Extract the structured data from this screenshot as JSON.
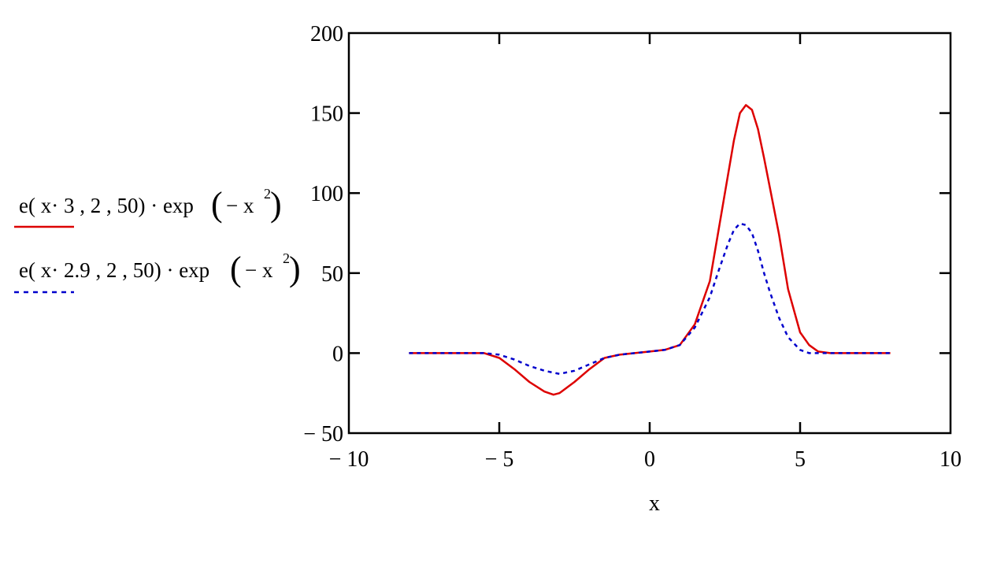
{
  "chart_data": {
    "type": "line",
    "xlabel": "x",
    "xlim": [
      -10,
      10
    ],
    "ylim": [
      -50,
      200
    ],
    "x_ticks": [
      -10,
      -5,
      0,
      5,
      10
    ],
    "y_ticks": [
      -50,
      0,
      50,
      100,
      150,
      200
    ],
    "x_tick_labels": [
      "− 10",
      "− 5",
      "0",
      "5",
      "10"
    ],
    "y_tick_labels": [
      "− 50",
      "0",
      "50",
      "100",
      "150",
      "200"
    ],
    "grid": false,
    "legend_position": "left",
    "series": [
      {
        "name": "e(x·3 , 2 , 50)·exp(− x2)",
        "legend": {
          "main": "e( x· 3 , 2 , 50) · exp",
          "open": "(",
          "minus": "−  x",
          "sup": "2",
          "close": ")"
        },
        "color": "#dd0000",
        "style": "solid",
        "x": [
          -8.0,
          -6.0,
          -5.5,
          -5.0,
          -4.5,
          -4.0,
          -3.5,
          -3.2,
          -3.0,
          -2.5,
          -2.0,
          -1.5,
          -1.0,
          -0.5,
          0.0,
          0.5,
          1.0,
          1.5,
          2.0,
          2.5,
          2.8,
          3.0,
          3.2,
          3.4,
          3.6,
          3.8,
          4.0,
          4.3,
          4.6,
          5.0,
          5.3,
          5.6,
          6.0,
          7.0,
          8.0
        ],
        "y": [
          0,
          0,
          0,
          -3,
          -10,
          -18,
          -24,
          -26,
          -25,
          -18,
          -10,
          -3,
          -1,
          0,
          1,
          2,
          5,
          18,
          45,
          100,
          133,
          150,
          155,
          152,
          140,
          122,
          103,
          74,
          40,
          13,
          5,
          1,
          0,
          0,
          0
        ]
      },
      {
        "name": "e(x·2.9 , 2 , 50)·exp(− x2)",
        "legend": {
          "main": "e( x· 2.9 , 2 , 50) · exp",
          "open": "(",
          "minus": "−  x",
          "sup": "2",
          "close": ")"
        },
        "color": "#0000cc",
        "style": "dashed",
        "x": [
          -8.0,
          -6.0,
          -5.5,
          -5.0,
          -4.5,
          -4.0,
          -3.5,
          -3.0,
          -2.5,
          -2.0,
          -1.5,
          -1.0,
          -0.5,
          0.0,
          0.5,
          1.0,
          1.5,
          2.0,
          2.3,
          2.6,
          2.8,
          3.0,
          3.2,
          3.4,
          3.6,
          3.8,
          4.0,
          4.3,
          4.6,
          5.0,
          5.3,
          5.6,
          6.0,
          7.0,
          8.0
        ],
        "y": [
          0,
          0,
          0,
          -1,
          -4,
          -8,
          -11,
          -13,
          -11,
          -7,
          -3,
          -1,
          0,
          1,
          2,
          5,
          16,
          35,
          52,
          68,
          77,
          81,
          80,
          75,
          64,
          50,
          38,
          22,
          10,
          2,
          0,
          0,
          0,
          0,
          0
        ]
      }
    ]
  }
}
